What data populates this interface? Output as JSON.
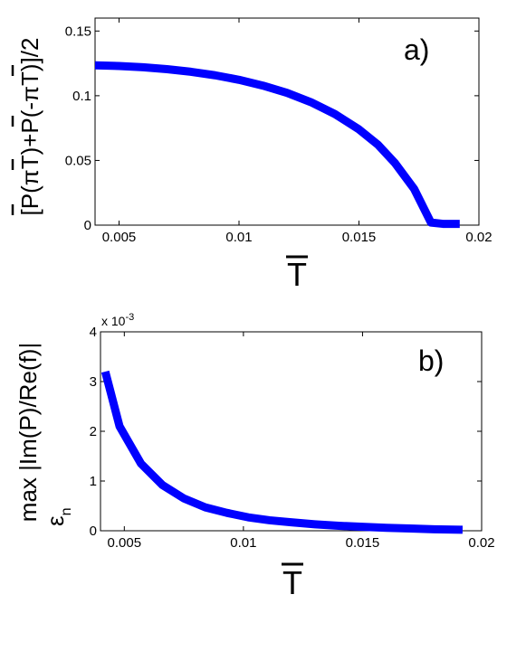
{
  "chart_data": [
    {
      "type": "line",
      "panel_label": "a)",
      "xlabel": "T",
      "ylabel": "[P(πT)+P(-πT)]/2",
      "xlim": [
        0.004,
        0.02
      ],
      "ylim": [
        0,
        0.16
      ],
      "xticks": [
        0.005,
        0.01,
        0.015,
        0.02
      ],
      "xtick_labels": [
        "0.005",
        "0.01",
        "0.015",
        "0.02"
      ],
      "yticks": [
        0,
        0.05,
        0.1,
        0.15
      ],
      "ytick_labels": [
        "0",
        "0.05",
        "0.1",
        "0.15"
      ],
      "grid": false,
      "color": "#0000ff",
      "series": [
        {
          "x": [
            0.004,
            0.005,
            0.006,
            0.007,
            0.008,
            0.009,
            0.01,
            0.011,
            0.012,
            0.013,
            0.014,
            0.015,
            0.0158,
            0.0165,
            0.0173,
            0.018,
            0.0185,
            0.0192
          ],
          "y": [
            0.1235,
            0.123,
            0.122,
            0.1205,
            0.1185,
            0.1158,
            0.1123,
            0.1078,
            0.1022,
            0.095,
            0.0858,
            0.074,
            0.062,
            0.048,
            0.028,
            0.002,
            0.001,
            0.001
          ]
        }
      ]
    },
    {
      "type": "line",
      "panel_label": "b)",
      "xlabel": "T",
      "ylabel_line1": "max |Im(P)/Re(f)|",
      "ylabel_line2": "ε",
      "ylabel_sub": "n",
      "exponent_label": "x 10",
      "exponent_power": "-3",
      "xlim": [
        0.004,
        0.02
      ],
      "ylim": [
        0,
        4
      ],
      "xticks": [
        0.005,
        0.01,
        0.015,
        0.02
      ],
      "xtick_labels": [
        "0.005",
        "0.01",
        "0.015",
        "0.02"
      ],
      "yticks": [
        0,
        1,
        2,
        3,
        4
      ],
      "ytick_labels": [
        "0",
        "1",
        "2",
        "3",
        "4"
      ],
      "grid": false,
      "color": "#0000ff",
      "series": [
        {
          "x": [
            0.0042,
            0.0048,
            0.0057,
            0.0066,
            0.0075,
            0.0084,
            0.0093,
            0.0102,
            0.0111,
            0.012,
            0.013,
            0.014,
            0.015,
            0.016,
            0.017,
            0.018,
            0.0192
          ],
          "y": [
            3.2,
            2.1,
            1.35,
            0.92,
            0.65,
            0.47,
            0.36,
            0.27,
            0.21,
            0.17,
            0.13,
            0.1,
            0.08,
            0.06,
            0.045,
            0.03,
            0.02
          ]
        }
      ]
    }
  ]
}
